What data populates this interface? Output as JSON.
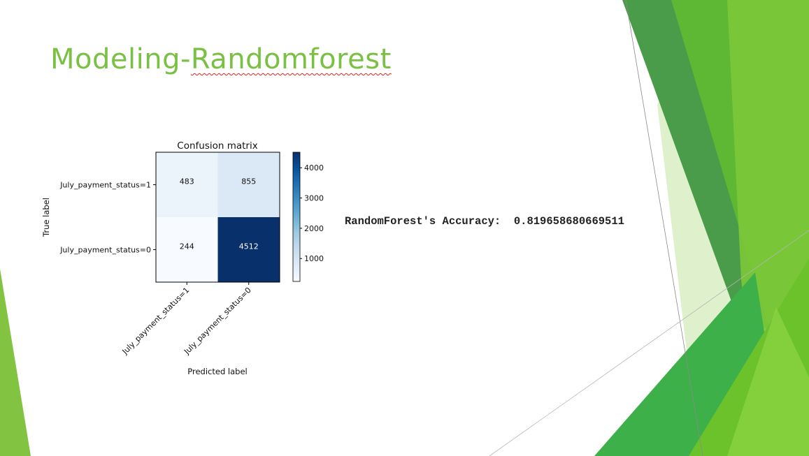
{
  "slide": {
    "title_prefix": "Modeling-",
    "title_word": "Randomforest",
    "accuracy_text": "RandomForest's Accuracy:  0.819658680669511"
  },
  "colors": {
    "title": "#7ac143",
    "cmap_low": "#f7fbff",
    "cmap_high": "#08306b",
    "spellcheck": "#e0211d"
  },
  "chart_data": {
    "type": "heatmap",
    "title": "Confusion matrix",
    "xlabel": "Predicted label",
    "ylabel": "True label",
    "x_categories": [
      "July_payment_status=1",
      "July_payment_status=0"
    ],
    "y_categories": [
      "July_payment_status=1",
      "July_payment_status=0"
    ],
    "matrix": [
      [
        483,
        855
      ],
      [
        244,
        4512
      ]
    ],
    "colorbar": {
      "ticks": [
        1000,
        2000,
        3000,
        4000
      ],
      "range": [
        244,
        4512
      ]
    },
    "colormap": "Blues"
  }
}
